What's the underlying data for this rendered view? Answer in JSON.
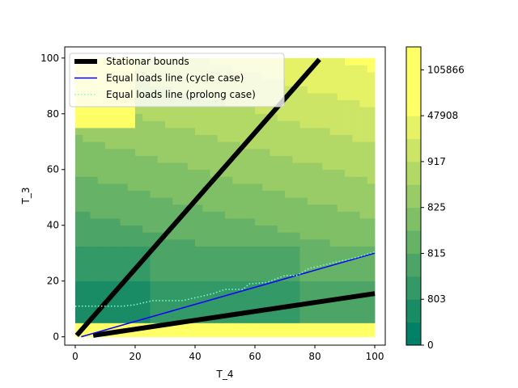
{
  "chart_data": {
    "type": "heatmap",
    "title": "",
    "xlabel": "T_4",
    "ylabel": "T_3",
    "xlim": [
      -3.5,
      103.5
    ],
    "ylim": [
      -3,
      104
    ],
    "xticks": [
      "0",
      "20",
      "40",
      "60",
      "80",
      "100"
    ],
    "yticks": [
      "0",
      "20",
      "40",
      "60",
      "80",
      "100"
    ],
    "grid": false,
    "legend_position": "top-left",
    "series": [
      {
        "name": "Stationar bounds",
        "style": "solid-thick",
        "color": "#000000",
        "segments": [
          {
            "x": [
              0.5,
              81.5
            ],
            "y": [
              0.5,
              99.5
            ]
          },
          {
            "x": [
              6,
              100
            ],
            "y": [
              0.5,
              15.5
            ]
          }
        ]
      },
      {
        "name": "Equal loads line (cycle case)",
        "style": "solid",
        "color": "#0000ff",
        "x": [
          2,
          100
        ],
        "y": [
          0,
          30
        ]
      },
      {
        "name": "Equal loads line (prolong case)",
        "style": "dotted",
        "color": "#7fffd4",
        "x": [
          0,
          16,
          20,
          26,
          36,
          46,
          50,
          56,
          58,
          64,
          70,
          74,
          78,
          84,
          88,
          94,
          100
        ],
        "y": [
          11,
          11,
          11.5,
          13,
          13,
          15.5,
          17,
          17,
          19,
          19.5,
          22,
          22,
          24.5,
          26,
          27,
          28.5,
          30.5
        ]
      }
    ],
    "colorbar": {
      "tick_labels": [
        "0",
        "803",
        "815",
        "825",
        "917",
        "47908",
        "105866"
      ],
      "tick_levels": [
        0,
        2,
        4,
        6,
        8,
        10,
        12
      ],
      "levels": 13,
      "colors": [
        "#008066",
        "#198c66",
        "#339966",
        "#4ca566",
        "#66b266",
        "#7fbf66",
        "#99cc66",
        "#b2d866",
        "#cce566",
        "#e5f266",
        "#ffff66",
        "#ffff66",
        "#ffff66"
      ]
    }
  }
}
